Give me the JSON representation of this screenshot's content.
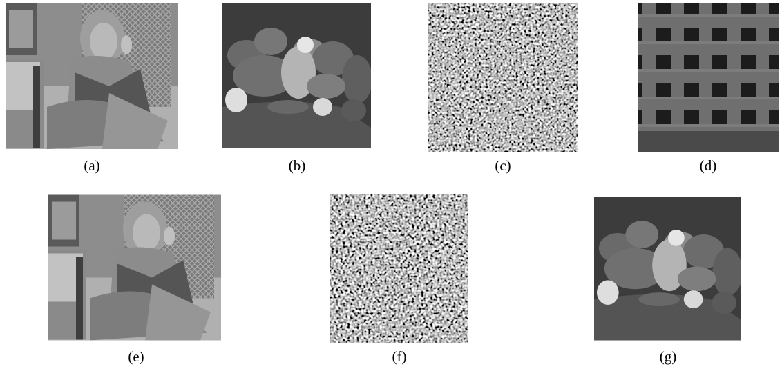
{
  "figure": {
    "panels": [
      {
        "label": "(a)"
      },
      {
        "label": "(b)"
      },
      {
        "label": "(c)"
      },
      {
        "label": "(d)"
      },
      {
        "label": "(e)"
      },
      {
        "label": "(f)"
      },
      {
        "label": "(g)"
      }
    ]
  }
}
